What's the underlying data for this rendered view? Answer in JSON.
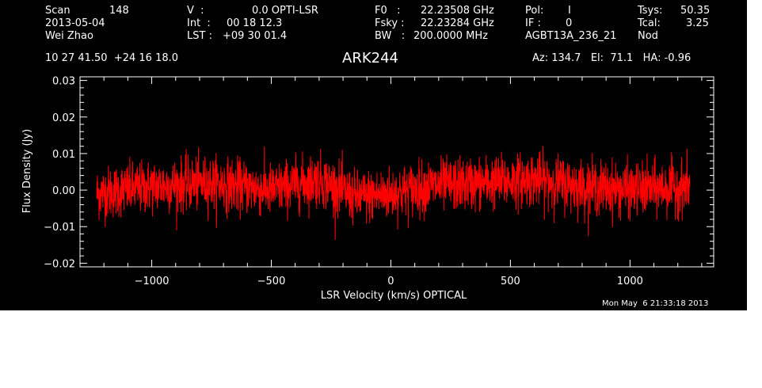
{
  "header": {
    "scan_label": "Scan",
    "scan_value": "148",
    "date": "2013-05-04",
    "observer": "Wei Zhao",
    "v_label": "V  :",
    "v_value": "0.0 OPTI-LSR",
    "int_label": "Int  :",
    "int_value": "00 18 12.3",
    "lst_label": "LST : ",
    "lst_value": "+09 30 01.4",
    "f0_label": "F0   :",
    "f0_value": "22.23508 GHz",
    "fsky_label": "Fsky :",
    "fsky_value": "22.23284 GHz",
    "bw_label": "BW   :",
    "bw_value": "200.0000 MHz",
    "pol_label": "Pol:",
    "pol_value": "I",
    "if_label": "IF :",
    "if_value": "0",
    "project": "AGBT13A_236_21",
    "tsys_label": "Tsys:",
    "tsys_value": "50.35",
    "tcal_label": "Tcal:",
    "tcal_value": "3.25",
    "mode": "Nod",
    "coords": "10 27 41.50  +24 16 18.0",
    "az_el_ha": "Az: 134.7   El:  71.1   HA: -0.96",
    "source": "ARK244"
  },
  "timestamp": "Mon May  6 21:33:18 2013",
  "colors": {
    "background": "#000000",
    "axes": "#ffffff",
    "series": "#ff0000"
  },
  "chart_data": {
    "type": "line",
    "title": "ARK244",
    "xlabel": "LSR Velocity (km/s) OPTICAL",
    "ylabel": "Flux Density (Jy)",
    "xlim": [
      -1300,
      1350
    ],
    "ylim": [
      -0.021,
      0.031
    ],
    "x_ticks": [
      -1000,
      -500,
      0,
      500,
      1000
    ],
    "x_tick_labels": [
      "−1000",
      "−500",
      "0",
      "500",
      "1000"
    ],
    "y_ticks": [
      -0.02,
      -0.01,
      0.0,
      0.01,
      0.02,
      0.03
    ],
    "y_tick_labels": [
      "−0.02",
      "−0.01",
      "0.00",
      "0.01",
      "0.02",
      "0.03"
    ],
    "grid": false,
    "series": [
      {
        "color": "#ff0000",
        "x_start": -1230,
        "x_end": 1250,
        "rms_noise": 0.0055,
        "baseline_x": [
          -1230,
          -1000,
          -750,
          -500,
          -300,
          -150,
          0,
          150,
          400,
          600,
          800,
          1000,
          1250
        ],
        "baseline_y": [
          -0.001,
          0.001,
          0.002,
          0.0,
          0.003,
          -0.002,
          -0.001,
          0.001,
          0.002,
          0.003,
          0.001,
          0.0,
          0.001
        ]
      }
    ]
  }
}
